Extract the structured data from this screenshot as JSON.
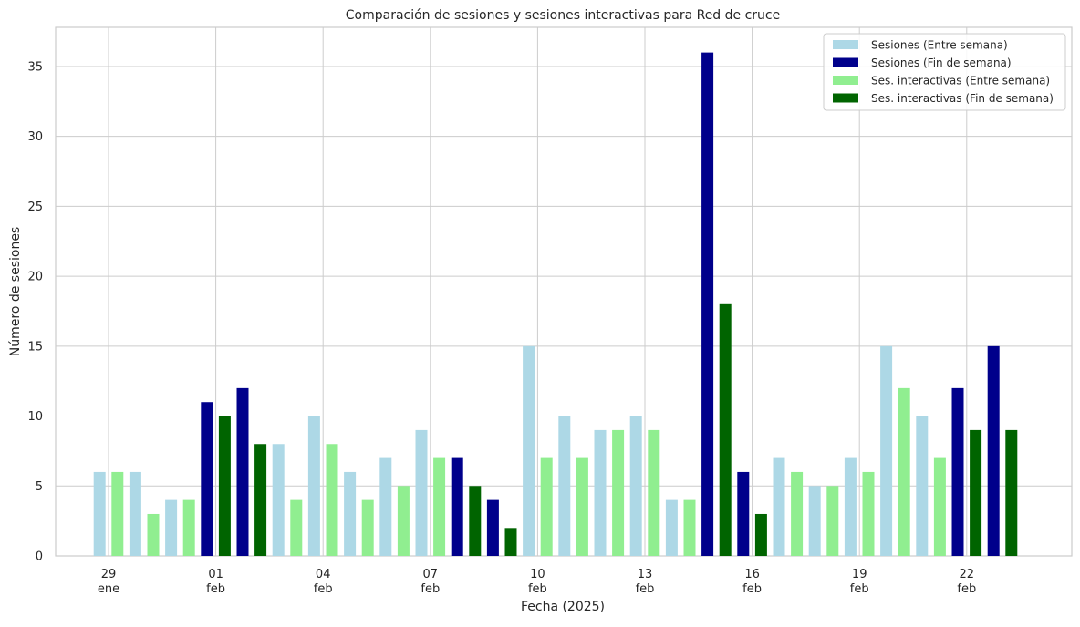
{
  "chart_data": {
    "type": "bar",
    "title": "Comparación de sesiones y sesiones interactivas para Red de cruce",
    "xlabel": "Fecha (2025)",
    "ylabel": "Número de sesiones",
    "ylim": [
      0,
      37.8
    ],
    "yticks": [
      0,
      5,
      10,
      15,
      20,
      25,
      30,
      35
    ],
    "grid": true,
    "legend_position": "top-right",
    "x_tick_labels": [
      {
        "day": "29",
        "month": "ene"
      },
      {
        "day": "01",
        "month": "feb"
      },
      {
        "day": "04",
        "month": "feb"
      },
      {
        "day": "07",
        "month": "feb"
      },
      {
        "day": "10",
        "month": "feb"
      },
      {
        "day": "13",
        "month": "feb"
      },
      {
        "day": "16",
        "month": "feb"
      },
      {
        "day": "19",
        "month": "feb"
      },
      {
        "day": "22",
        "month": "feb"
      }
    ],
    "categories": [
      "2025-01-29",
      "2025-01-30",
      "2025-01-31",
      "2025-02-01",
      "2025-02-02",
      "2025-02-03",
      "2025-02-04",
      "2025-02-05",
      "2025-02-06",
      "2025-02-07",
      "2025-02-08",
      "2025-02-09",
      "2025-02-10",
      "2025-02-11",
      "2025-02-12",
      "2025-02-13",
      "2025-02-14",
      "2025-02-15",
      "2025-02-16",
      "2025-02-17",
      "2025-02-18",
      "2025-02-19",
      "2025-02-20",
      "2025-02-21",
      "2025-02-22",
      "2025-02-23"
    ],
    "series": [
      {
        "name": "Sesiones (Entre semana)",
        "color": "#add8e6",
        "group": "sesiones",
        "values": [
          6,
          6,
          4,
          null,
          null,
          8,
          10,
          6,
          7,
          9,
          null,
          null,
          15,
          10,
          9,
          10,
          4,
          null,
          null,
          7,
          5,
          7,
          15,
          10,
          null,
          null
        ]
      },
      {
        "name": "Sesiones (Fin de semana)",
        "color": "#00008b",
        "group": "sesiones",
        "values": [
          null,
          null,
          null,
          11,
          12,
          null,
          null,
          null,
          null,
          null,
          7,
          4,
          null,
          null,
          null,
          null,
          null,
          36,
          6,
          null,
          null,
          null,
          null,
          null,
          12,
          15
        ]
      },
      {
        "name": "Ses. interactivas (Entre semana)",
        "color": "#90ee90",
        "group": "interactivas",
        "values": [
          6,
          3,
          4,
          null,
          null,
          4,
          8,
          4,
          5,
          7,
          null,
          null,
          7,
          7,
          9,
          9,
          4,
          null,
          null,
          6,
          5,
          6,
          12,
          7,
          null,
          null
        ]
      },
      {
        "name": "Ses. interactivas (Fin de semana)",
        "color": "#006400",
        "group": "interactivas",
        "values": [
          null,
          null,
          null,
          10,
          8,
          null,
          null,
          null,
          null,
          null,
          5,
          2,
          null,
          null,
          null,
          null,
          null,
          18,
          3,
          null,
          null,
          null,
          null,
          null,
          9,
          9
        ]
      }
    ]
  }
}
